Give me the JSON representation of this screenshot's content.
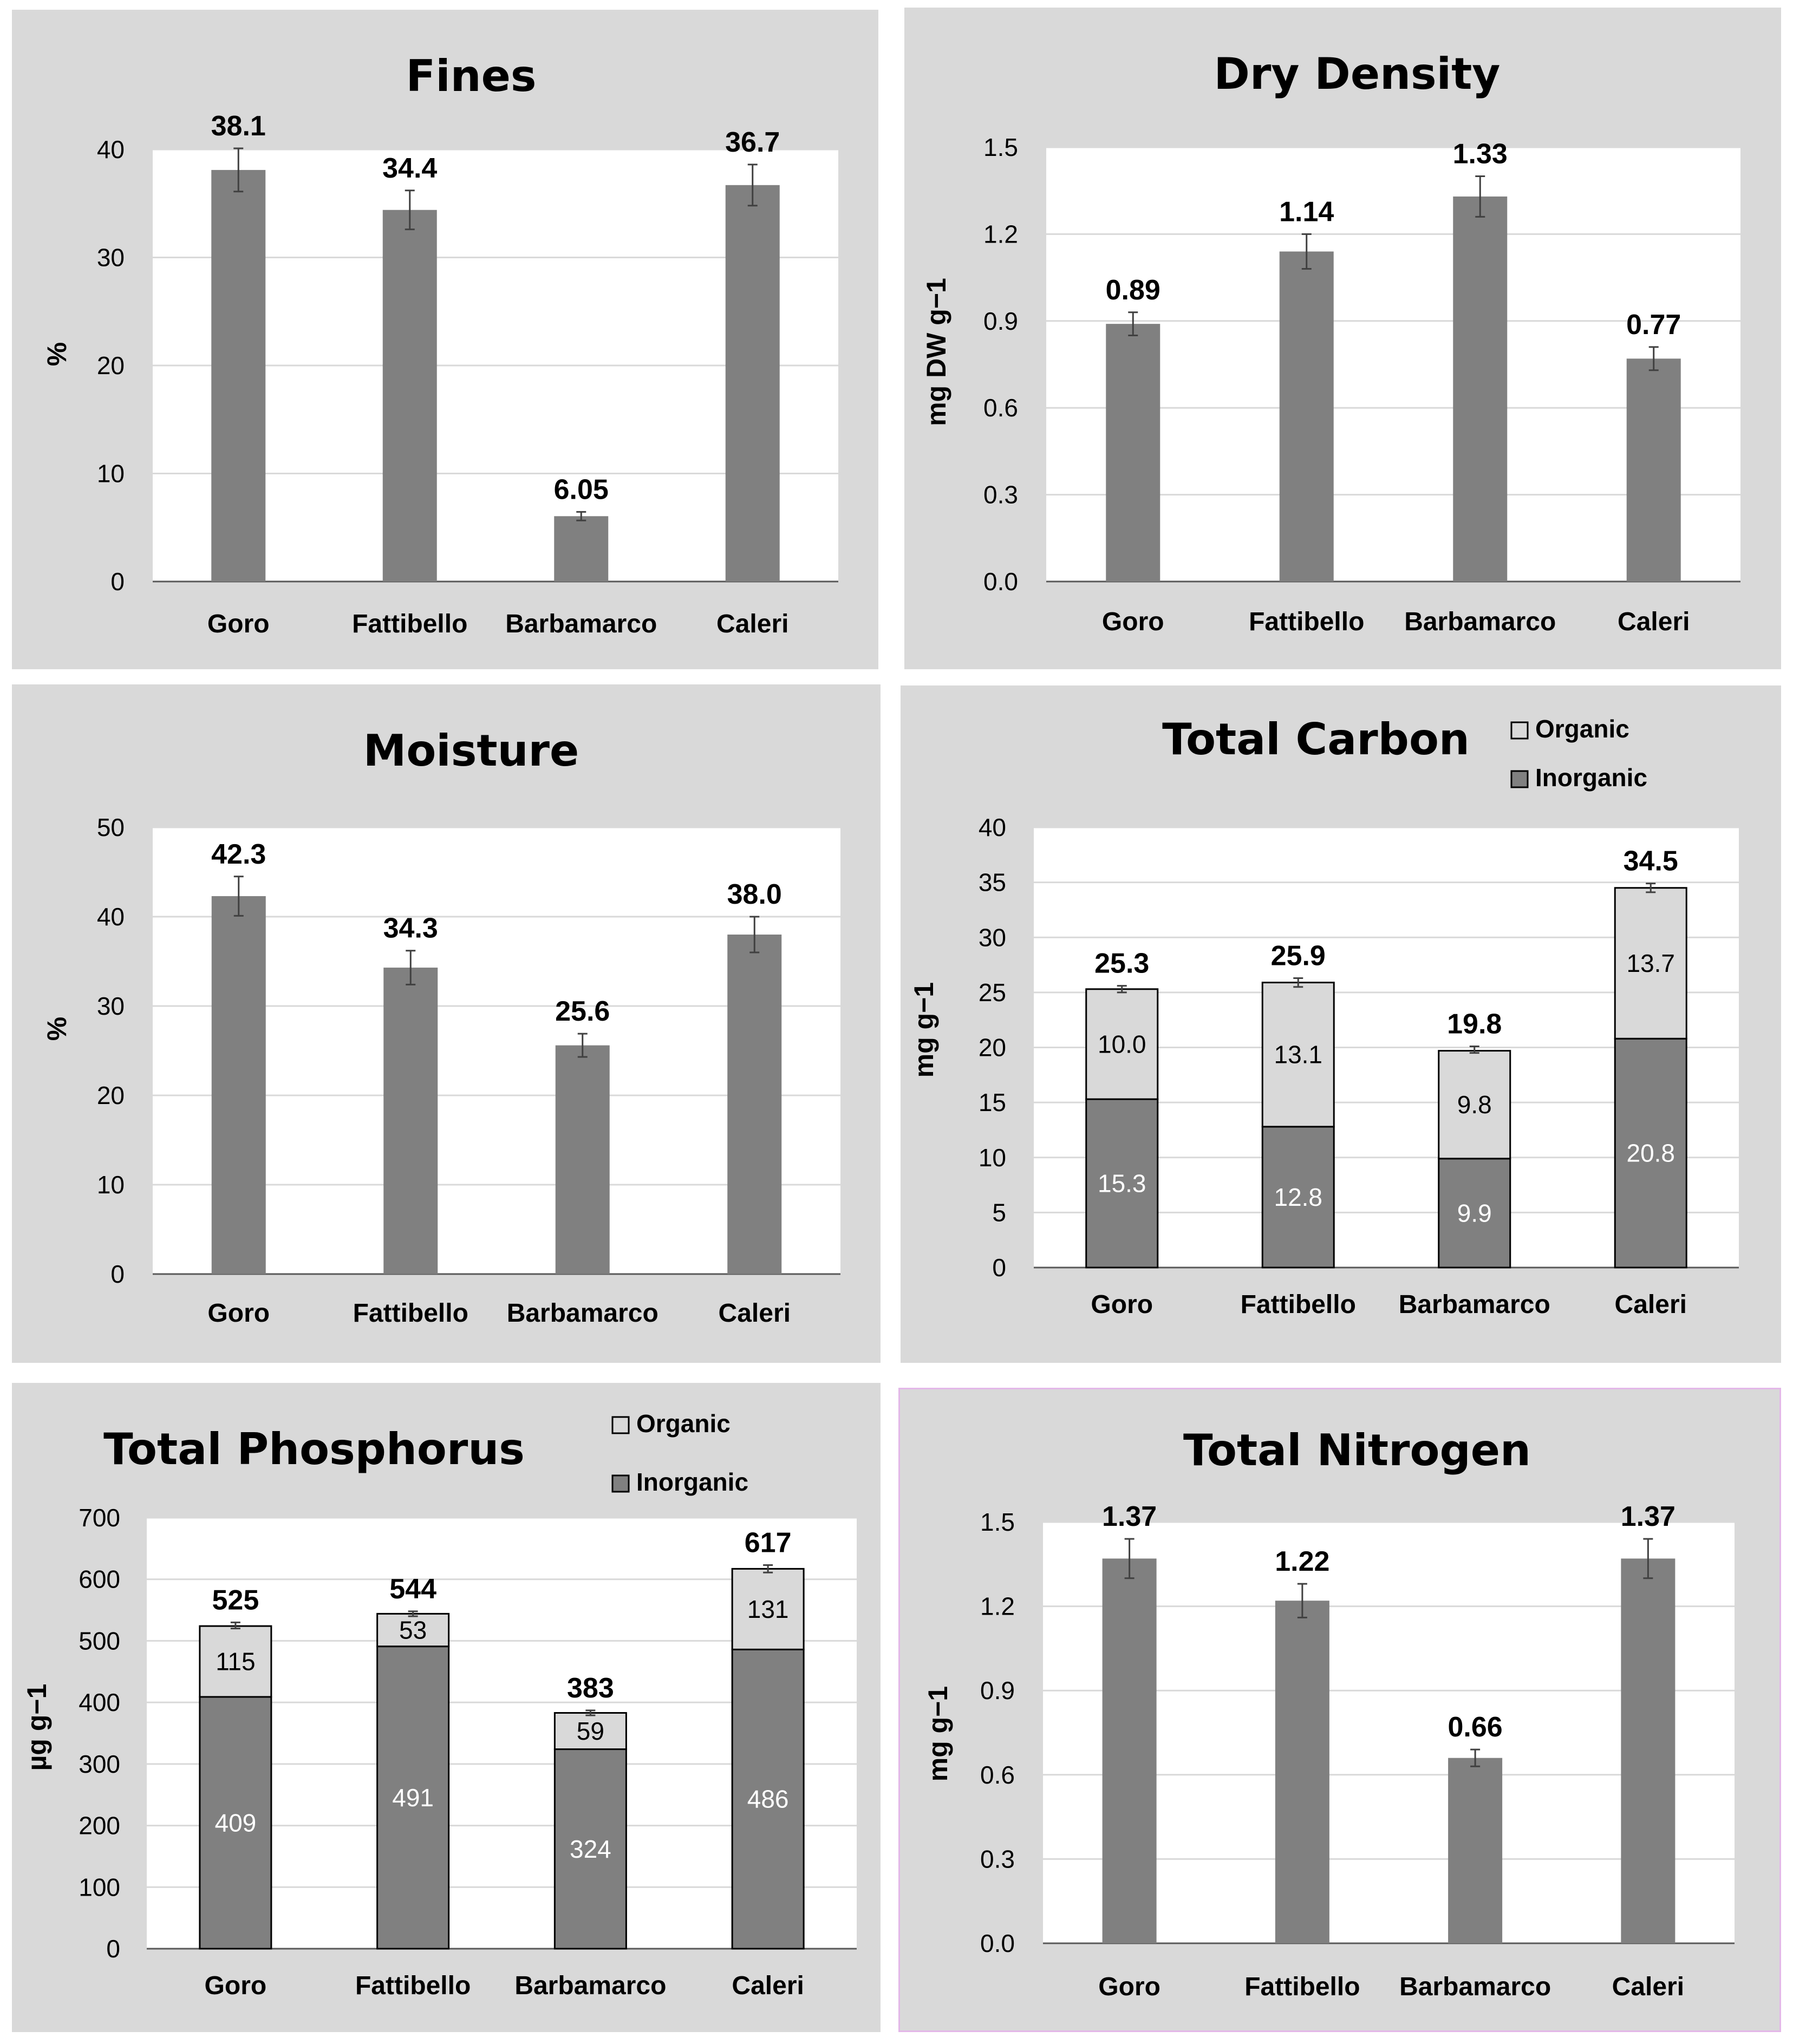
{
  "colors": {
    "panel_bg": "#d9d9d9",
    "plot_bg": "#ffffff",
    "bar": "#808080",
    "organic": "#d9d9d9",
    "gridline": "#d9d9d9",
    "highlight_border": "#e3b8e8"
  },
  "chart_data": [
    {
      "id": "fines",
      "type": "bar",
      "title": "Fines",
      "ylabel": "%",
      "categories": [
        "Goro",
        "Fattibello",
        "Barbamarco",
        "Caleri"
      ],
      "values": [
        38.1,
        34.4,
        6.05,
        36.7
      ],
      "value_labels": [
        "38.1",
        "34.4",
        "6.05",
        "36.7"
      ],
      "errors": [
        2.0,
        1.8,
        0.4,
        1.9
      ],
      "ylim": [
        0,
        40
      ],
      "yticks": [
        0,
        10,
        20,
        30,
        40
      ],
      "ytick_labels": [
        "0",
        "10",
        "20",
        "30",
        "40"
      ],
      "grid": true
    },
    {
      "id": "dry-density",
      "type": "bar",
      "title": "Dry Density",
      "ylabel": "mg DW g−1",
      "categories": [
        "Goro",
        "Fattibello",
        "Barbamarco",
        "Caleri"
      ],
      "values": [
        0.89,
        1.14,
        1.33,
        0.77
      ],
      "value_labels": [
        "0.89",
        "1.14",
        "1.33",
        "0.77"
      ],
      "errors": [
        0.04,
        0.06,
        0.07,
        0.04
      ],
      "ylim": [
        0,
        1.5
      ],
      "yticks": [
        0,
        0.3,
        0.6,
        0.9,
        1.2,
        1.5
      ],
      "ytick_labels": [
        "0.0",
        "0.3",
        "0.6",
        "0.9",
        "1.2",
        "1.5"
      ],
      "grid": true
    },
    {
      "id": "moisture",
      "type": "bar",
      "title": "Moisture",
      "ylabel": "%",
      "categories": [
        "Goro",
        "Fattibello",
        "Barbamarco",
        "Caleri"
      ],
      "values": [
        42.3,
        34.3,
        25.6,
        38.0
      ],
      "value_labels": [
        "42.3",
        "34.3",
        "25.6",
        "38.0"
      ],
      "errors": [
        2.2,
        1.9,
        1.3,
        2.0
      ],
      "ylim": [
        0,
        50
      ],
      "yticks": [
        0,
        10,
        20,
        30,
        40,
        50
      ],
      "ytick_labels": [
        "0",
        "10",
        "20",
        "30",
        "40",
        "50"
      ],
      "grid": true
    },
    {
      "id": "total-carbon",
      "type": "stacked-bar",
      "title": "Total Carbon",
      "ylabel": "mg g−1",
      "categories": [
        "Goro",
        "Fattibello",
        "Barbamarco",
        "Caleri"
      ],
      "series": [
        {
          "name": "Inorganic",
          "values": [
            15.3,
            12.8,
            9.9,
            20.8
          ],
          "labels": [
            "15.3",
            "12.8",
            "9.9",
            "20.8"
          ]
        },
        {
          "name": "Organic",
          "values": [
            10.0,
            13.1,
            9.8,
            13.7
          ],
          "labels": [
            "10.0",
            "13.1",
            "9.8",
            "13.7"
          ]
        }
      ],
      "totals": [
        25.3,
        25.9,
        19.8,
        34.5
      ],
      "total_labels": [
        "25.3",
        "25.9",
        "19.8",
        "34.5"
      ],
      "errors": [
        0.3,
        0.4,
        0.3,
        0.4
      ],
      "ylim": [
        0,
        40
      ],
      "yticks": [
        0,
        5,
        10,
        15,
        20,
        25,
        30,
        35,
        40
      ],
      "ytick_labels": [
        "0",
        "5",
        "10",
        "15",
        "20",
        "25",
        "30",
        "35",
        "40"
      ],
      "legend_position": "top-right",
      "grid": true
    },
    {
      "id": "total-phosphorus",
      "type": "stacked-bar",
      "title": "Total Phosphorus",
      "ylabel": "µg g−1",
      "categories": [
        "Goro",
        "Fattibello",
        "Barbamarco",
        "Caleri"
      ],
      "series": [
        {
          "name": "Inorganic",
          "values": [
            409,
            491,
            324,
            486
          ],
          "labels": [
            "409",
            "491",
            "324",
            "486"
          ]
        },
        {
          "name": "Organic",
          "values": [
            115,
            53,
            59,
            131
          ],
          "labels": [
            "115",
            "53",
            "59",
            "131"
          ]
        }
      ],
      "totals": [
        525,
        544,
        383,
        617
      ],
      "total_labels": [
        "525",
        "544",
        "383",
        "617"
      ],
      "errors": [
        5,
        4,
        4,
        6
      ],
      "ylim": [
        0,
        700
      ],
      "yticks": [
        0,
        100,
        200,
        300,
        400,
        500,
        600,
        700
      ],
      "ytick_labels": [
        "0",
        "100",
        "200",
        "300",
        "400",
        "500",
        "600",
        "700"
      ],
      "legend_position": "top-right",
      "grid": true
    },
    {
      "id": "total-nitrogen",
      "type": "bar",
      "title": "Total Nitrogen",
      "ylabel": "mg g−1",
      "categories": [
        "Goro",
        "Fattibello",
        "Barbamarco",
        "Caleri"
      ],
      "values": [
        1.37,
        1.22,
        0.66,
        1.37
      ],
      "value_labels": [
        "1.37",
        "1.22",
        "0.66",
        "1.37"
      ],
      "errors": [
        0.07,
        0.06,
        0.03,
        0.07
      ],
      "ylim": [
        0,
        1.5
      ],
      "yticks": [
        0,
        0.3,
        0.6,
        0.9,
        1.2,
        1.5
      ],
      "ytick_labels": [
        "0.0",
        "0.3",
        "0.6",
        "0.9",
        "1.2",
        "1.5"
      ],
      "grid": true
    }
  ]
}
